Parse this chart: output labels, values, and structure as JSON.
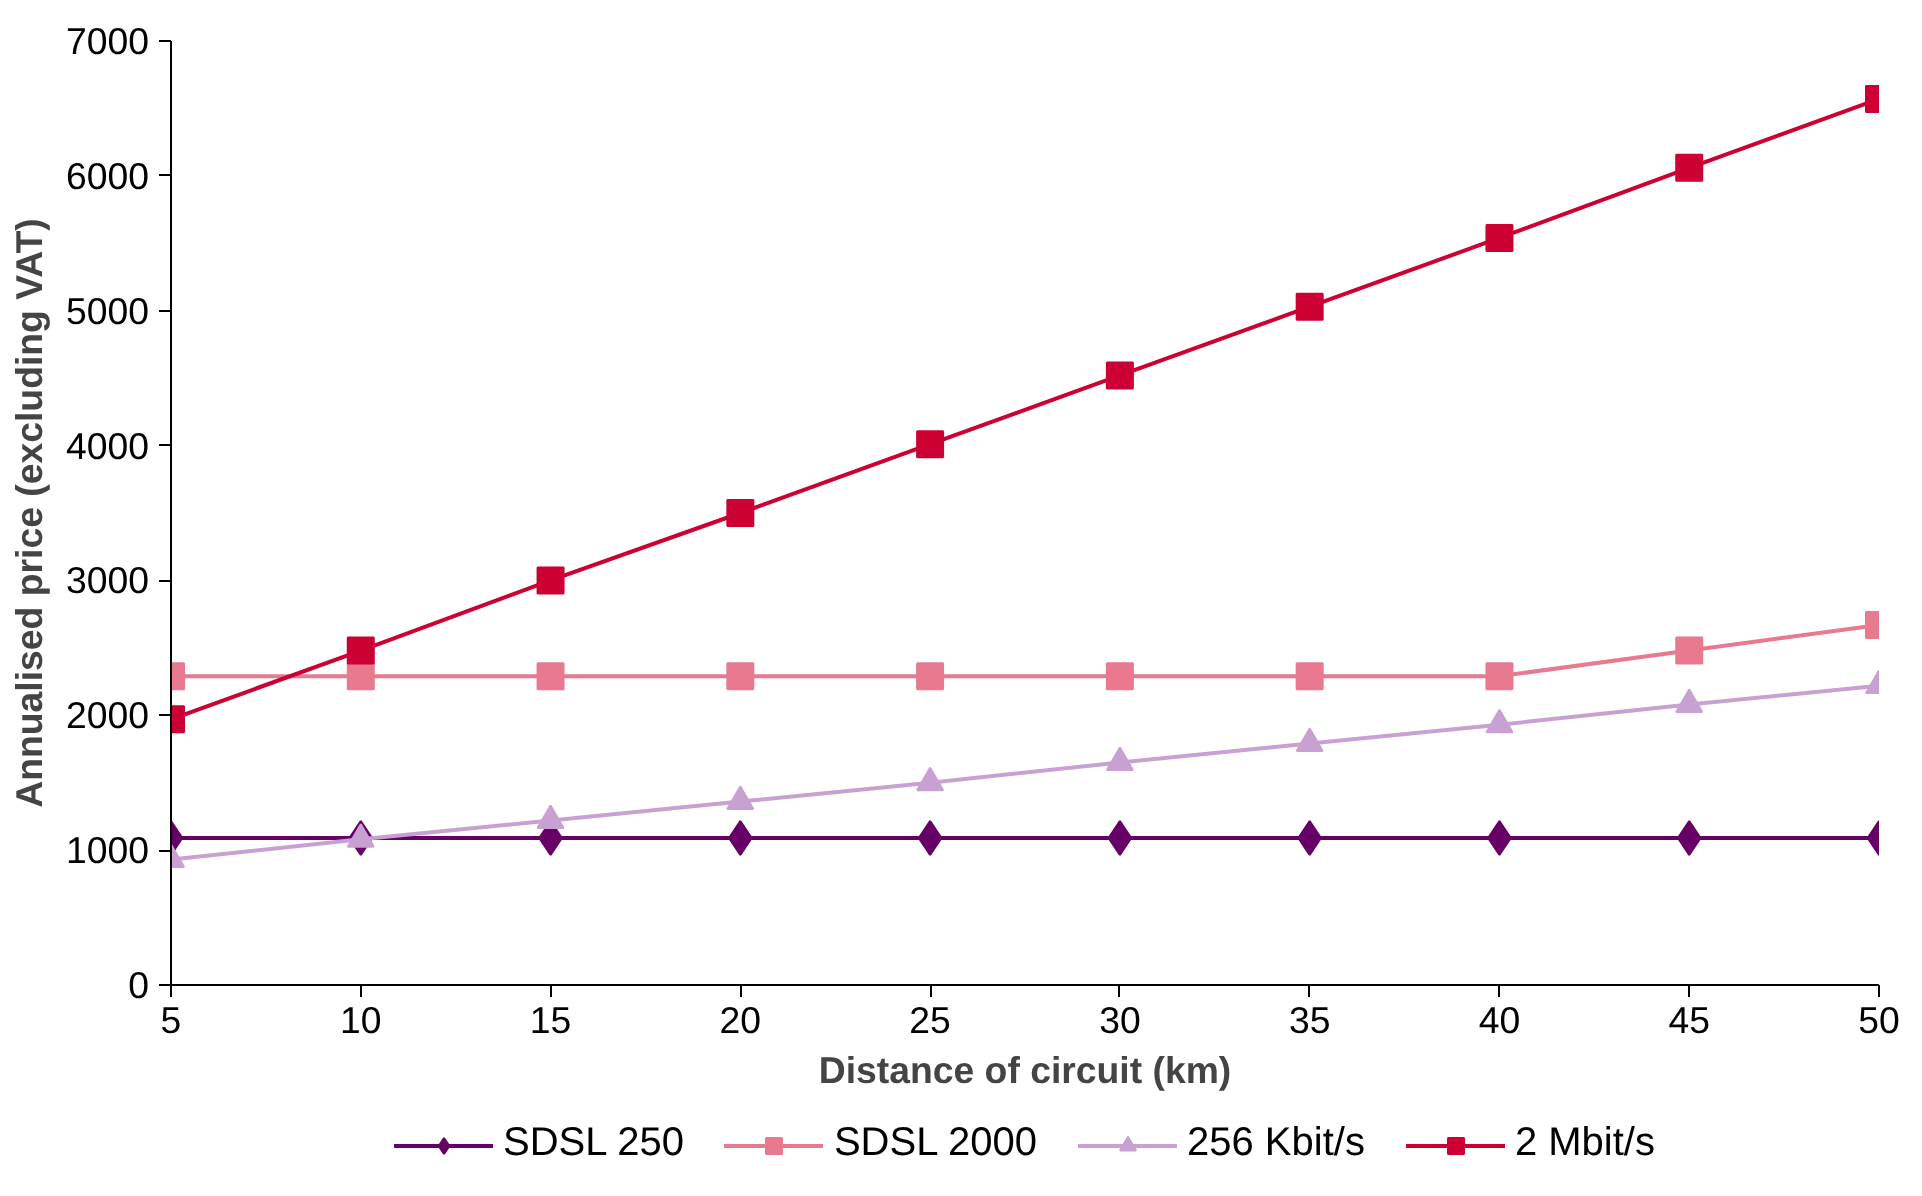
{
  "chart_data": {
    "type": "line",
    "xlabel": "Distance of circuit (km)",
    "ylabel": "Annualised price (excluding VAT)",
    "categories": [
      "5",
      "10",
      "15",
      "20",
      "25",
      "30",
      "35",
      "40",
      "45",
      "50"
    ],
    "series": [
      {
        "name": "SDSL 250",
        "color": "#660066",
        "marker": "diamond",
        "values": [
          1090,
          1090,
          1090,
          1090,
          1090,
          1090,
          1090,
          1090,
          1090,
          1090
        ]
      },
      {
        "name": "SDSL 2000",
        "color": "#e8798f",
        "marker": "square",
        "values": [
          2290,
          2290,
          2290,
          2290,
          2290,
          2290,
          2290,
          2290,
          2480,
          2670
        ]
      },
      {
        "name": "256 Kbit/s",
        "color": "#c9a0d2",
        "marker": "triangle",
        "values": [
          930,
          1080,
          1220,
          1360,
          1500,
          1650,
          1790,
          1930,
          2080,
          2220
        ]
      },
      {
        "name": "2 Mbit/s",
        "color": "#cc0033",
        "marker": "square",
        "values": [
          1970,
          2480,
          3000,
          3500,
          4010,
          4520,
          5030,
          5540,
          6060,
          6570
        ]
      }
    ],
    "ylim": [
      0,
      7000
    ],
    "yticks": [
      0,
      1000,
      2000,
      3000,
      4000,
      5000,
      6000,
      7000
    ],
    "grid": false,
    "legend": "bottom"
  }
}
